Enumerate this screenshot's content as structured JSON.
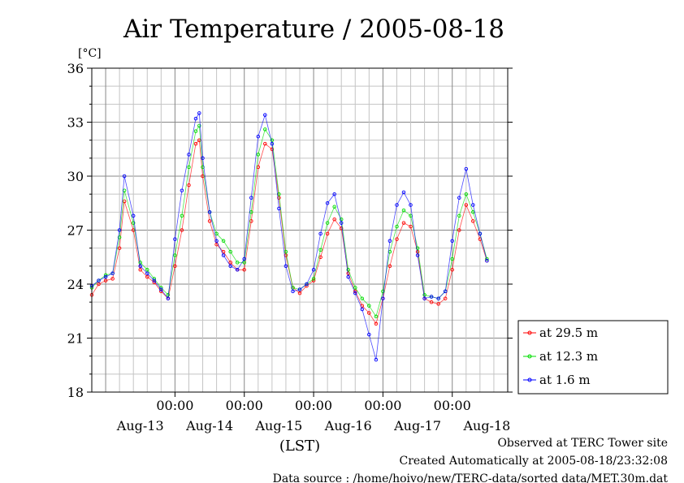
{
  "chart_data": {
    "type": "line",
    "title": "Air Temperature / 2005-08-18",
    "ylabel": "[°C]",
    "xlabel": "(LST)",
    "ylim": [
      18,
      36
    ],
    "xlim": [
      -12,
      48
    ],
    "x_units": "hours relative to 2005-08-14 00:00 LST",
    "yticks": [
      18,
      21,
      24,
      27,
      30,
      33,
      36
    ],
    "xtick_labels": [
      {
        "x": 0,
        "label": "00:00"
      },
      {
        "x": 10,
        "label": "00:00"
      },
      {
        "x": 20,
        "label": "00:00"
      },
      {
        "x": 30,
        "label": "00:00"
      },
      {
        "x": 40,
        "label": "00:00"
      }
    ],
    "date_labels": [
      {
        "x": -5,
        "label": "Aug-13"
      },
      {
        "x": 5,
        "label": "Aug-14"
      },
      {
        "x": 15,
        "label": "Aug-15"
      },
      {
        "x": 25,
        "label": "Aug-16"
      },
      {
        "x": 35,
        "label": "Aug-17"
      },
      {
        "x": 45,
        "label": "Aug-18"
      }
    ],
    "grid": true,
    "legend_position": "right",
    "series": [
      {
        "name": "at 29.5 m",
        "color": "#ff0000",
        "points": [
          [
            -12,
            23.4
          ],
          [
            -11,
            24.0
          ],
          [
            -10,
            24.2
          ],
          [
            -9,
            24.3
          ],
          [
            -8,
            26.0
          ],
          [
            -7.3,
            28.6
          ],
          [
            -6,
            27.0
          ],
          [
            -5,
            24.8
          ],
          [
            -4,
            24.4
          ],
          [
            -3,
            24.1
          ],
          [
            -2,
            23.6
          ],
          [
            -1,
            23.2
          ],
          [
            0,
            25.0
          ],
          [
            1,
            27.0
          ],
          [
            2,
            29.5
          ],
          [
            3,
            31.8
          ],
          [
            3.5,
            32.0
          ],
          [
            4,
            30.0
          ],
          [
            5,
            27.5
          ],
          [
            6,
            26.2
          ],
          [
            7,
            25.8
          ],
          [
            8,
            25.2
          ],
          [
            9,
            24.8
          ],
          [
            10,
            24.8
          ],
          [
            11,
            27.5
          ],
          [
            12,
            30.5
          ],
          [
            13,
            31.8
          ],
          [
            14,
            31.5
          ],
          [
            15,
            28.8
          ],
          [
            16,
            25.6
          ],
          [
            17,
            23.8
          ],
          [
            18,
            23.5
          ],
          [
            19,
            23.9
          ],
          [
            20,
            24.2
          ],
          [
            21,
            25.5
          ],
          [
            22,
            26.8
          ],
          [
            23,
            27.6
          ],
          [
            24,
            27.1
          ],
          [
            25,
            24.6
          ],
          [
            26,
            23.6
          ],
          [
            27,
            22.8
          ],
          [
            28,
            22.4
          ],
          [
            29,
            21.8
          ],
          [
            30,
            23.2
          ],
          [
            31,
            25.0
          ],
          [
            32,
            26.5
          ],
          [
            33,
            27.4
          ],
          [
            34,
            27.2
          ],
          [
            35,
            25.8
          ],
          [
            36,
            23.2
          ],
          [
            37,
            23.0
          ],
          [
            38,
            22.9
          ],
          [
            39,
            23.2
          ],
          [
            40,
            24.8
          ],
          [
            41,
            27.0
          ],
          [
            42,
            28.4
          ],
          [
            43,
            27.5
          ],
          [
            44,
            26.5
          ],
          [
            45,
            25.3
          ]
        ]
      },
      {
        "name": "at 12.3 m",
        "color": "#00dd00",
        "points": [
          [
            -12,
            23.8
          ],
          [
            -11,
            24.2
          ],
          [
            -10,
            24.5
          ],
          [
            -9,
            24.6
          ],
          [
            -8,
            26.6
          ],
          [
            -7.3,
            29.2
          ],
          [
            -6,
            27.4
          ],
          [
            -5,
            25.2
          ],
          [
            -4,
            24.8
          ],
          [
            -3,
            24.3
          ],
          [
            -2,
            23.8
          ],
          [
            -1,
            23.4
          ],
          [
            0,
            25.6
          ],
          [
            1,
            27.8
          ],
          [
            2,
            30.5
          ],
          [
            3,
            32.5
          ],
          [
            3.5,
            32.8
          ],
          [
            4,
            30.5
          ],
          [
            5,
            28.0
          ],
          [
            6,
            26.8
          ],
          [
            7,
            26.4
          ],
          [
            8,
            25.8
          ],
          [
            9,
            25.2
          ],
          [
            10,
            25.2
          ],
          [
            11,
            28.0
          ],
          [
            12,
            31.2
          ],
          [
            13,
            32.6
          ],
          [
            14,
            32.0
          ],
          [
            15,
            29.0
          ],
          [
            16,
            25.8
          ],
          [
            17,
            23.8
          ],
          [
            18,
            23.7
          ],
          [
            19,
            24.0
          ],
          [
            20,
            24.3
          ],
          [
            21,
            25.9
          ],
          [
            22,
            27.4
          ],
          [
            23,
            28.3
          ],
          [
            24,
            27.6
          ],
          [
            25,
            24.8
          ],
          [
            26,
            23.8
          ],
          [
            27,
            23.2
          ],
          [
            28,
            22.8
          ],
          [
            29,
            22.2
          ],
          [
            30,
            23.6
          ],
          [
            31,
            25.8
          ],
          [
            32,
            27.2
          ],
          [
            33,
            28.1
          ],
          [
            34,
            27.8
          ],
          [
            35,
            26.0
          ],
          [
            36,
            23.4
          ],
          [
            37,
            23.3
          ],
          [
            38,
            23.2
          ],
          [
            39,
            23.6
          ],
          [
            40,
            25.4
          ],
          [
            41,
            27.8
          ],
          [
            42,
            29.0
          ],
          [
            43,
            28.0
          ],
          [
            44,
            26.8
          ],
          [
            45,
            25.4
          ]
        ]
      },
      {
        "name": "at 1.6 m",
        "color": "#0000ff",
        "points": [
          [
            -12,
            23.9
          ],
          [
            -11,
            24.2
          ],
          [
            -10,
            24.4
          ],
          [
            -9,
            24.6
          ],
          [
            -8,
            27.0
          ],
          [
            -7.3,
            30.0
          ],
          [
            -6,
            27.8
          ],
          [
            -5,
            25.0
          ],
          [
            -4,
            24.6
          ],
          [
            -3,
            24.2
          ],
          [
            -2,
            23.7
          ],
          [
            -1,
            23.2
          ],
          [
            0,
            26.5
          ],
          [
            1,
            29.2
          ],
          [
            2,
            31.2
          ],
          [
            3,
            33.2
          ],
          [
            3.5,
            33.5
          ],
          [
            4,
            31.0
          ],
          [
            5,
            28.0
          ],
          [
            6,
            26.4
          ],
          [
            7,
            25.6
          ],
          [
            8,
            25.0
          ],
          [
            9,
            24.8
          ],
          [
            10,
            25.4
          ],
          [
            11,
            28.8
          ],
          [
            12,
            32.2
          ],
          [
            13,
            33.4
          ],
          [
            14,
            31.8
          ],
          [
            15,
            28.2
          ],
          [
            16,
            25.0
          ],
          [
            17,
            23.6
          ],
          [
            18,
            23.7
          ],
          [
            19,
            24.0
          ],
          [
            20,
            24.8
          ],
          [
            21,
            26.8
          ],
          [
            22,
            28.5
          ],
          [
            23,
            29.0
          ],
          [
            24,
            27.4
          ],
          [
            25,
            24.4
          ],
          [
            26,
            23.5
          ],
          [
            27,
            22.6
          ],
          [
            28,
            21.2
          ],
          [
            29,
            19.8
          ],
          [
            30,
            23.2
          ],
          [
            31,
            26.4
          ],
          [
            32,
            28.4
          ],
          [
            33,
            29.1
          ],
          [
            34,
            28.4
          ],
          [
            35,
            25.6
          ],
          [
            36,
            23.2
          ],
          [
            37,
            23.3
          ],
          [
            38,
            23.2
          ],
          [
            39,
            23.6
          ],
          [
            40,
            26.4
          ],
          [
            41,
            28.8
          ],
          [
            42,
            30.4
          ],
          [
            43,
            28.4
          ],
          [
            44,
            26.8
          ],
          [
            45,
            25.3
          ]
        ]
      }
    ],
    "footer_lines": [
      "Observed at TERC Tower site",
      "Created Automatically at 2005-08-18/23:32:08",
      "Data source : /home/hoivo/new/TERC-data/sorted  data/MET.30m.dat"
    ]
  }
}
